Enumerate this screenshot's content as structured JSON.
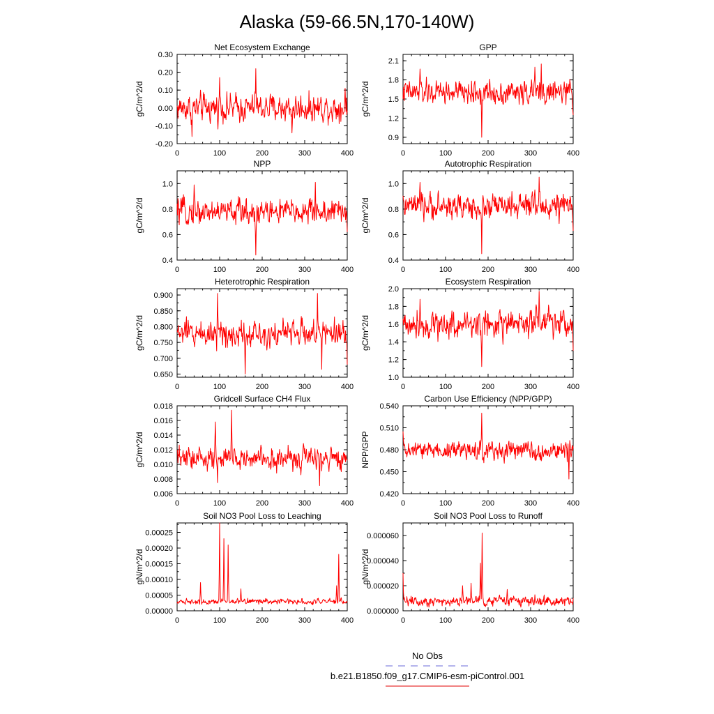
{
  "title": "Alaska (59-66.5N,170-140W)",
  "legend": {
    "obs_label": "No Obs",
    "obs_color": "#6a6ad8",
    "model_label": "b.e21.B1850.f09_g17.CMIP6-esm-piControl.001",
    "model_color": "#e00000"
  },
  "line_color": "#ff0000",
  "chart_data": [
    {
      "type": "line",
      "title": "Net Ecosystem Exchange",
      "ylabel": "gC/m^2/d",
      "xlim": [
        0,
        400
      ],
      "xticks": [
        "0",
        "100",
        "200",
        "300",
        "400"
      ],
      "ylim": [
        -0.2,
        0.3
      ],
      "yticks": [
        "-0.20",
        "-0.10",
        "0.00",
        "0.10",
        "0.20",
        "0.30"
      ],
      "yticks_v": [
        -0.2,
        -0.1,
        0,
        0.1,
        0.2,
        0.3
      ],
      "series": [
        {
          "mean": 0.0,
          "amp": 0.055,
          "spikes": [
            [
              35,
              -0.16
            ],
            [
              100,
              0.17
            ],
            [
              185,
              0.22
            ],
            [
              270,
              -0.14
            ],
            [
              395,
              0.11
            ]
          ]
        }
      ]
    },
    {
      "type": "line",
      "title": "GPP",
      "ylabel": "gC/m^2/d",
      "xlim": [
        0,
        400
      ],
      "xticks": [
        "0",
        "100",
        "200",
        "300",
        "400"
      ],
      "ylim": [
        0.8,
        2.2
      ],
      "yticks": [
        "0.9",
        "1.2",
        "1.5",
        "1.8",
        "2.1"
      ],
      "yticks_v": [
        0.9,
        1.2,
        1.5,
        1.8,
        2.1
      ],
      "series": [
        {
          "mean": 1.6,
          "amp": 0.13,
          "spikes": [
            [
              40,
              1.97
            ],
            [
              185,
              0.9
            ],
            [
              310,
              2.0
            ],
            [
              325,
              2.05
            ],
            [
              400,
              1.25
            ]
          ]
        }
      ]
    },
    {
      "type": "line",
      "title": "NPP",
      "ylabel": "gC/m^2/d",
      "xlim": [
        0,
        400
      ],
      "xticks": [
        "0",
        "100",
        "200",
        "300",
        "400"
      ],
      "ylim": [
        0.4,
        1.1
      ],
      "yticks": [
        "0.4",
        "0.6",
        "0.8",
        "1.0"
      ],
      "yticks_v": [
        0.4,
        0.6,
        0.8,
        1.0
      ],
      "series": [
        {
          "mean": 0.78,
          "amp": 0.07,
          "spikes": [
            [
              40,
              0.99
            ],
            [
              185,
              0.44
            ],
            [
              325,
              1.01
            ],
            [
              400,
              0.62
            ]
          ]
        }
      ]
    },
    {
      "type": "line",
      "title": "Autotrophic Respiration",
      "ylabel": "gC/m^2/d",
      "xlim": [
        0,
        400
      ],
      "xticks": [
        "0",
        "100",
        "200",
        "300",
        "400"
      ],
      "ylim": [
        0.4,
        1.1
      ],
      "yticks": [
        "0.4",
        "0.6",
        "0.8",
        "1.0"
      ],
      "yticks_v": [
        0.4,
        0.6,
        0.8,
        1.0
      ],
      "series": [
        {
          "mean": 0.82,
          "amp": 0.07,
          "spikes": [
            [
              40,
              1.01
            ],
            [
              185,
              0.45
            ],
            [
              320,
              1.05
            ],
            [
              400,
              0.63
            ]
          ]
        }
      ]
    },
    {
      "type": "line",
      "title": "Heterotrophic Respiration",
      "ylabel": "gC/m^2/d",
      "xlim": [
        0,
        400
      ],
      "xticks": [
        "0",
        "100",
        "200",
        "300",
        "400"
      ],
      "ylim": [
        0.64,
        0.92
      ],
      "yticks": [
        "0.650",
        "0.700",
        "0.750",
        "0.800",
        "0.850",
        "0.900"
      ],
      "yticks_v": [
        0.65,
        0.7,
        0.75,
        0.8,
        0.85,
        0.9
      ],
      "series": [
        {
          "mean": 0.78,
          "amp": 0.03,
          "spikes": [
            [
              95,
              0.905
            ],
            [
              160,
              0.65
            ],
            [
              330,
              0.905
            ],
            [
              340,
              0.665
            ],
            [
              400,
              0.68
            ]
          ]
        }
      ]
    },
    {
      "type": "line",
      "title": "Ecosystem Respiration",
      "ylabel": "gC/m^2/d",
      "xlim": [
        0,
        400
      ],
      "xticks": [
        "0",
        "100",
        "200",
        "300",
        "400"
      ],
      "ylim": [
        1.0,
        2.0
      ],
      "yticks": [
        "1.0",
        "1.2",
        "1.4",
        "1.6",
        "1.8",
        "2.0"
      ],
      "yticks_v": [
        1.0,
        1.2,
        1.4,
        1.6,
        1.8,
        2.0
      ],
      "series": [
        {
          "mean": 1.6,
          "amp": 0.11,
          "spikes": [
            [
              40,
              1.88
            ],
            [
              185,
              1.12
            ],
            [
              320,
              1.97
            ],
            [
              400,
              1.3
            ]
          ]
        }
      ]
    },
    {
      "type": "line",
      "title": "Gridcell Surface CH4 Flux",
      "ylabel": "gC/m^2/d",
      "xlim": [
        0,
        400
      ],
      "xticks": [
        "0",
        "100",
        "200",
        "300",
        "400"
      ],
      "ylim": [
        0.006,
        0.018
      ],
      "yticks": [
        "0.006",
        "0.008",
        "0.010",
        "0.012",
        "0.014",
        "0.016",
        "0.018"
      ],
      "yticks_v": [
        0.006,
        0.008,
        0.01,
        0.012,
        0.014,
        0.016,
        0.018
      ],
      "series": [
        {
          "mean": 0.0108,
          "amp": 0.0011,
          "spikes": [
            [
              128,
              0.0174
            ],
            [
              90,
              0.0158
            ],
            [
              95,
              0.0075
            ],
            [
              335,
              0.0071
            ]
          ]
        }
      ]
    },
    {
      "type": "line",
      "title": "Carbon Use Efficiency (NPP/GPP)",
      "ylabel": "NPP/GPP",
      "xlim": [
        0,
        400
      ],
      "xticks": [
        "0",
        "100",
        "200",
        "300",
        "400"
      ],
      "ylim": [
        0.42,
        0.54
      ],
      "yticks": [
        "0.420",
        "0.450",
        "0.480",
        "0.510",
        "0.540"
      ],
      "yticks_v": [
        0.42,
        0.45,
        0.48,
        0.51,
        0.54
      ],
      "series": [
        {
          "mean": 0.479,
          "amp": 0.009,
          "spikes": [
            [
              185,
              0.53
            ],
            [
              390,
              0.44
            ],
            [
              0,
              0.505
            ]
          ]
        }
      ]
    },
    {
      "type": "line",
      "title": "Soil NO3 Pool Loss to Leaching",
      "ylabel": "gN/m^2/d",
      "xlim": [
        0,
        400
      ],
      "xticks": [
        "0",
        "100",
        "200",
        "300",
        "400"
      ],
      "ylim": [
        0,
        0.00028
      ],
      "yticks": [
        "0.00000",
        "0.00005",
        "0.00010",
        "0.00015",
        "0.00020",
        "0.00025"
      ],
      "yticks_v": [
        0,
        5e-05,
        0.0001,
        0.00015,
        0.0002,
        0.00025
      ],
      "series": [
        {
          "mean": 3e-05,
          "amp": 6e-06,
          "spikes": [
            [
              55,
              9e-05
            ],
            [
              100,
              0.00028
            ],
            [
              110,
              0.00023
            ],
            [
              120,
              0.00021
            ],
            [
              150,
              7e-05
            ],
            [
              380,
              0.00018
            ],
            [
              375,
              8e-05
            ]
          ]
        }
      ]
    },
    {
      "type": "line",
      "title": "Soil NO3 Pool Loss to Runoff",
      "ylabel": "gN/m^2/d",
      "xlim": [
        0,
        400
      ],
      "xticks": [
        "0",
        "100",
        "200",
        "300",
        "400"
      ],
      "ylim": [
        0,
        7e-05
      ],
      "yticks": [
        "0.000000",
        "0.000020",
        "0.000040",
        "0.000060"
      ],
      "yticks_v": [
        0,
        2e-05,
        4e-05,
        6e-05
      ],
      "series": [
        {
          "mean": 8e-06,
          "amp": 3e-06,
          "spikes": [
            [
              0,
              3e-05
            ],
            [
              140,
              2e-05
            ],
            [
              160,
              2.2e-05
            ],
            [
              182,
              3.8e-05
            ],
            [
              186,
              6.2e-05
            ],
            [
              245,
              1.7e-05
            ]
          ]
        }
      ]
    }
  ]
}
